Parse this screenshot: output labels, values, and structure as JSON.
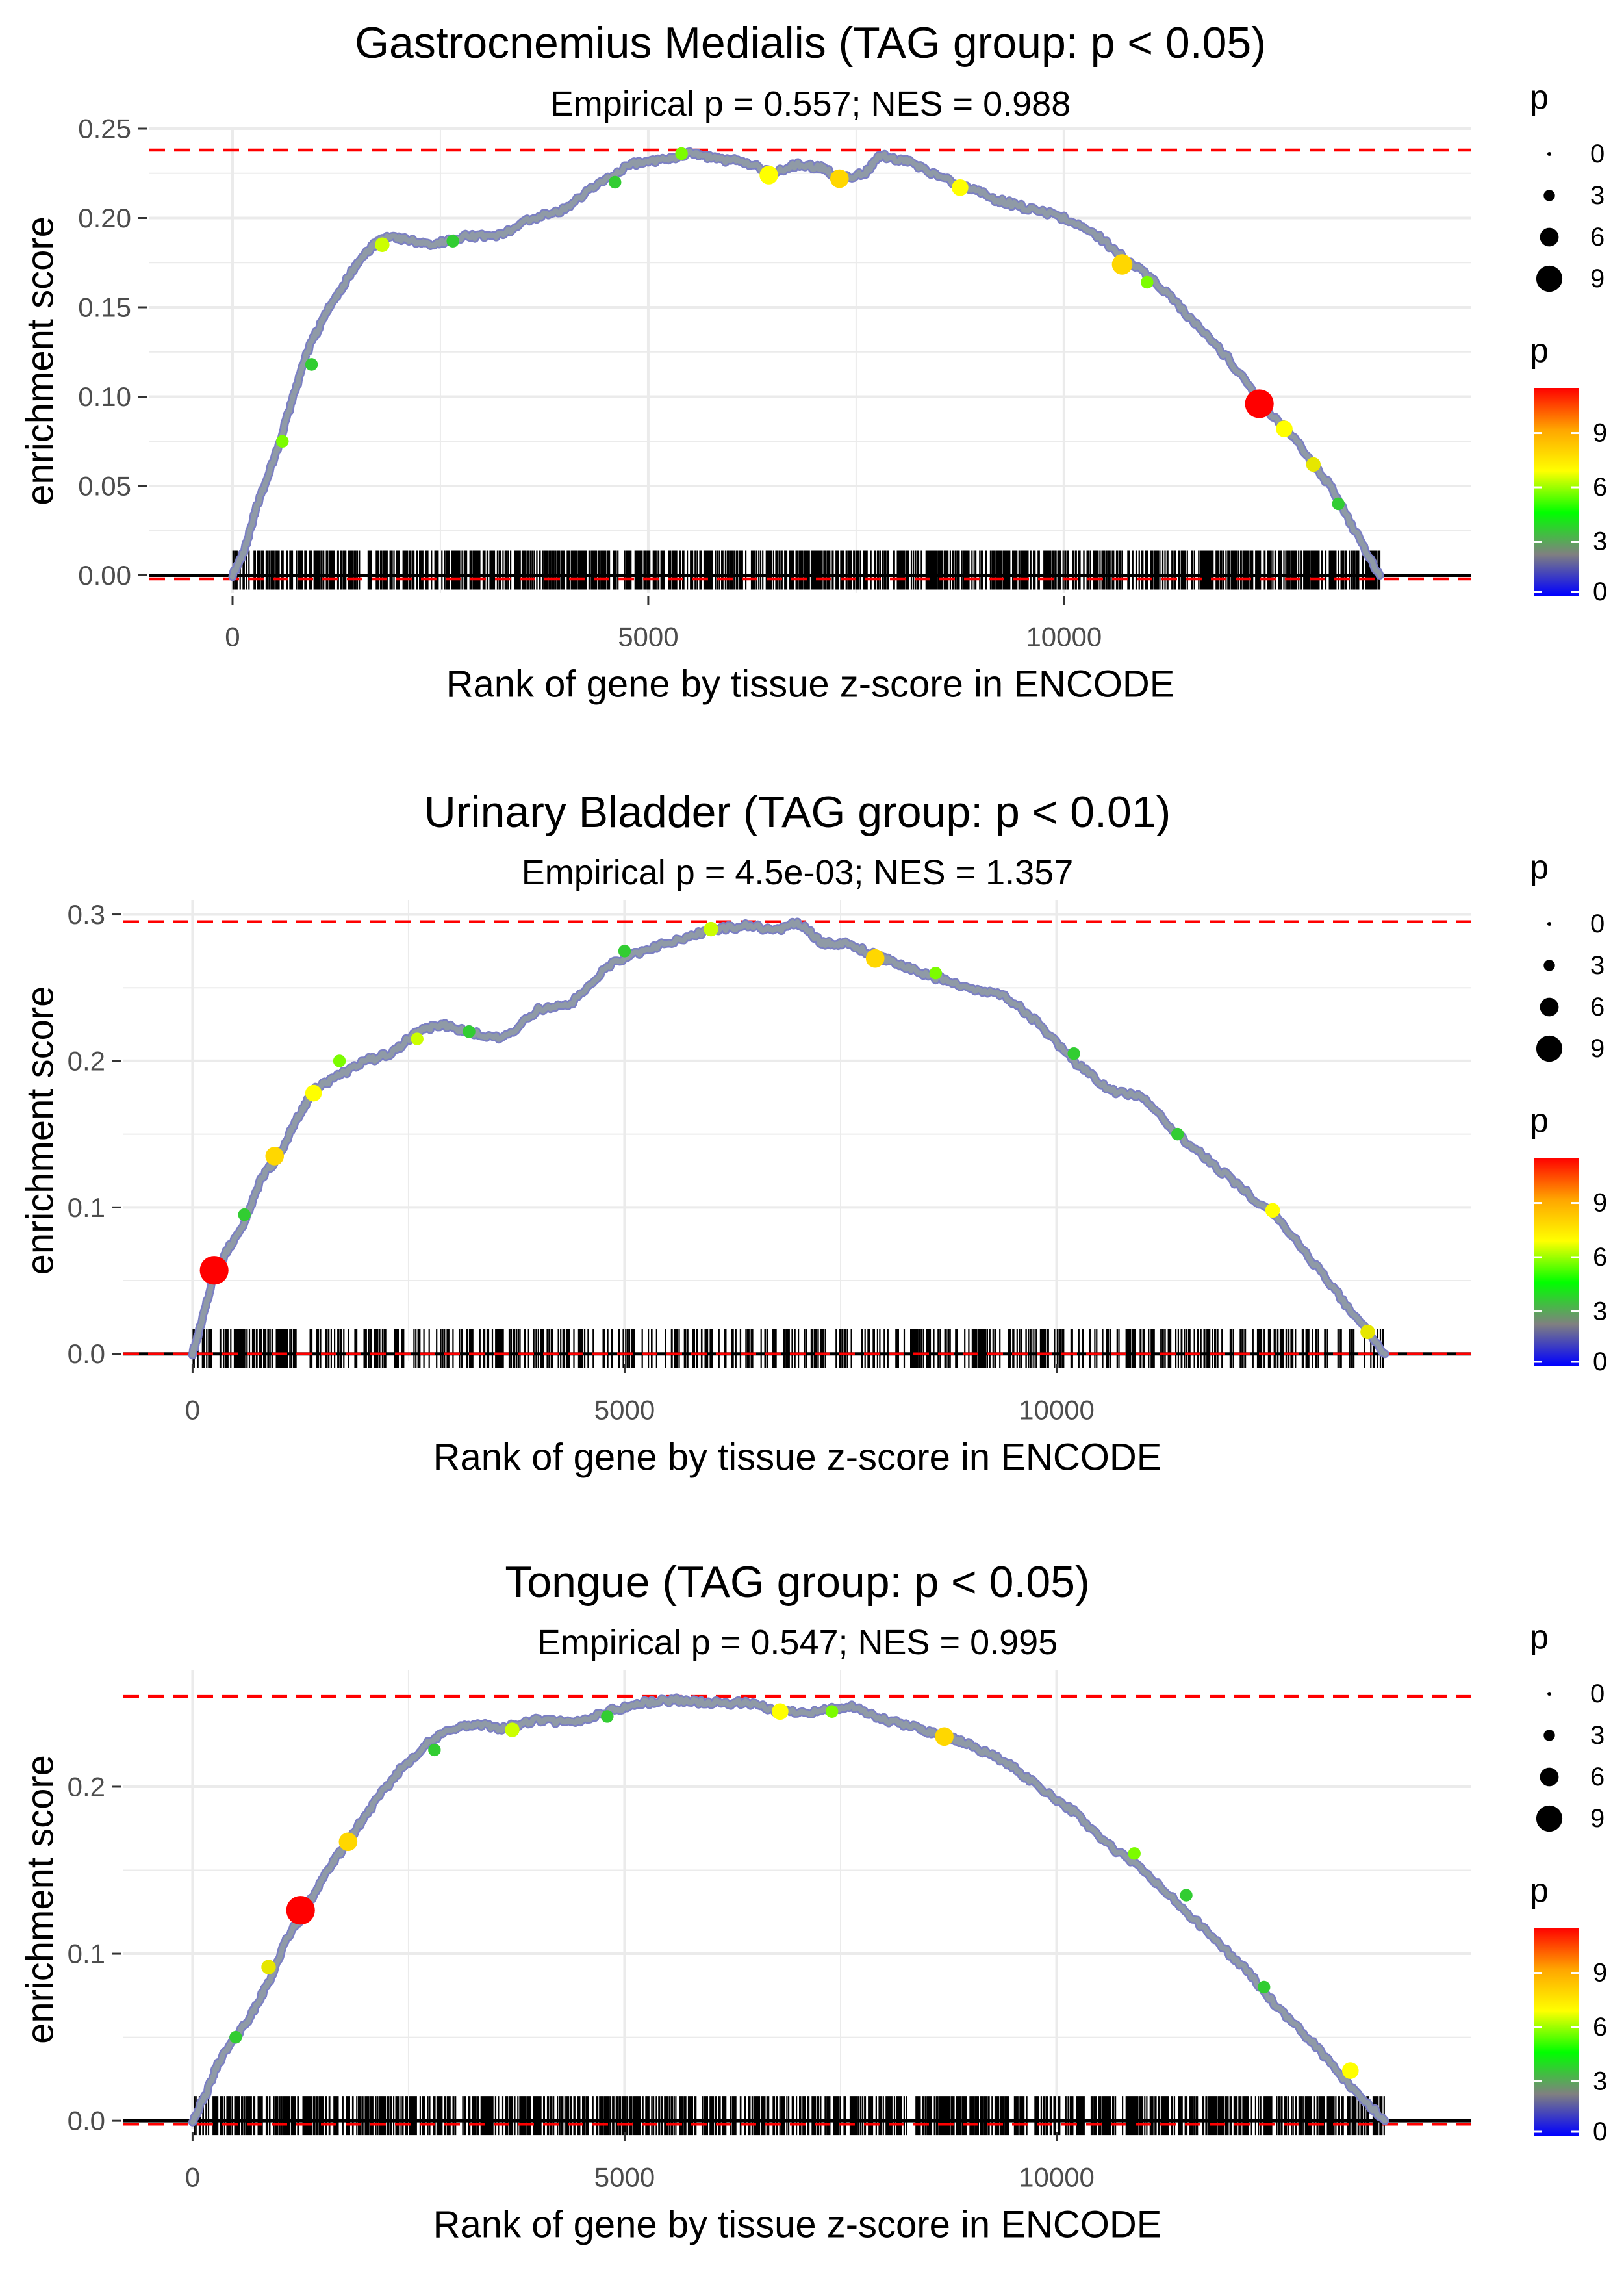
{
  "figure": {
    "background": "#ffffff",
    "grid_color": "#ebebeb",
    "max_line_color": "#ff0000"
  },
  "chart_data": [
    {
      "type": "line",
      "title": "Gastrocnemius Medialis (TAG group: p < 0.05)",
      "subtitle": "Empirical p = 0.557; NES = 0.988",
      "xlabel": "Rank of gene by tissue z-score in ENCODE",
      "ylabel": "enrichment score",
      "xlim": [
        -1000,
        14900
      ],
      "ylim": [
        -0.01,
        0.25
      ],
      "x_ticks": [
        0,
        5000,
        10000
      ],
      "x_tick_labels": [
        "0",
        "5000",
        "10000"
      ],
      "y_ticks": [
        0.0,
        0.05,
        0.1,
        0.15,
        0.2,
        0.25
      ],
      "y_tick_labels": [
        "0.00",
        "0.05",
        "0.10",
        "0.15",
        "0.20",
        "0.25"
      ],
      "max_es": 0.238,
      "min_es": -0.002,
      "n_genes": 13800,
      "curve": {
        "x": [
          0,
          150,
          300,
          500,
          700,
          900,
          1100,
          1300,
          1500,
          1700,
          1900,
          2100,
          2400,
          2800,
          3200,
          3600,
          4000,
          4400,
          4800,
          5200,
          5500,
          5800,
          6100,
          6500,
          6800,
          7100,
          7300,
          7600,
          7800,
          8100,
          8400,
          8800,
          9200,
          9600,
          10000,
          10400,
          10800,
          11200,
          11600,
          12000,
          12400,
          12800,
          13200,
          13500,
          13800
        ],
        "y": [
          0.0,
          0.015,
          0.04,
          0.065,
          0.095,
          0.125,
          0.145,
          0.16,
          0.175,
          0.185,
          0.19,
          0.188,
          0.185,
          0.19,
          0.19,
          0.2,
          0.205,
          0.22,
          0.23,
          0.233,
          0.236,
          0.233,
          0.232,
          0.225,
          0.23,
          0.228,
          0.222,
          0.225,
          0.235,
          0.232,
          0.225,
          0.218,
          0.21,
          0.205,
          0.2,
          0.19,
          0.175,
          0.16,
          0.14,
          0.12,
          0.095,
          0.075,
          0.05,
          0.025,
          0.0
        ]
      },
      "highlights": [
        {
          "x": 12350,
          "y": 0.096,
          "p": 11,
          "color": "#ff0000"
        },
        {
          "x": 10700,
          "y": 0.174,
          "p": 7,
          "color": "#ffd700"
        },
        {
          "x": 7300,
          "y": 0.222,
          "p": 6,
          "color": "#ffd700"
        },
        {
          "x": 6450,
          "y": 0.224,
          "p": 6,
          "color": "#ffff00"
        },
        {
          "x": 8750,
          "y": 0.217,
          "p": 5,
          "color": "#ffff00"
        },
        {
          "x": 12650,
          "y": 0.082,
          "p": 5,
          "color": "#ffff00"
        },
        {
          "x": 13000,
          "y": 0.062,
          "p": 4,
          "color": "#e6e600"
        },
        {
          "x": 1800,
          "y": 0.185,
          "p": 4,
          "color": "#ccff00"
        },
        {
          "x": 5400,
          "y": 0.236,
          "p": 3,
          "color": "#7cfc00"
        },
        {
          "x": 4600,
          "y": 0.22,
          "p": 3,
          "color": "#32cd32"
        },
        {
          "x": 2650,
          "y": 0.187,
          "p": 3,
          "color": "#32cd32"
        },
        {
          "x": 11000,
          "y": 0.164,
          "p": 3,
          "color": "#7cfc00"
        },
        {
          "x": 950,
          "y": 0.118,
          "p": 3,
          "color": "#32cd32"
        },
        {
          "x": 600,
          "y": 0.075,
          "p": 3,
          "color": "#7cfc00"
        },
        {
          "x": 13300,
          "y": 0.04,
          "p": 3,
          "color": "#32cd32"
        }
      ],
      "rug_seed": 11,
      "rug_count": 1050
    },
    {
      "type": "line",
      "title": "Urinary Bladder (TAG group: p < 0.01)",
      "subtitle": "Empirical p = 4.5e-03; NES = 1.357",
      "xlabel": "Rank of gene by tissue z-score in ENCODE",
      "ylabel": "enrichment score",
      "xlim": [
        -800,
        14800
      ],
      "ylim": [
        -0.005,
        0.31
      ],
      "x_ticks": [
        0,
        5000,
        10000
      ],
      "x_tick_labels": [
        "0",
        "5000",
        "10000"
      ],
      "y_ticks": [
        0.0,
        0.1,
        0.2,
        0.3
      ],
      "y_tick_labels": [
        "0.0",
        "0.1",
        "0.2",
        "0.3"
      ],
      "max_es": 0.295,
      "min_es": 0.0,
      "n_genes": 13800,
      "curve": {
        "x": [
          0,
          100,
          250,
          400,
          600,
          800,
          1000,
          1200,
          1400,
          1700,
          2000,
          2300,
          2600,
          2900,
          3200,
          3600,
          4000,
          4400,
          4800,
          5200,
          5600,
          6000,
          6400,
          6800,
          7000,
          7300,
          7600,
          7900,
          8200,
          8600,
          9000,
          9400,
          9800,
          10200,
          10600,
          11000,
          11400,
          11800,
          12200,
          12600,
          13000,
          13400,
          13800
        ],
        "y": [
          0.0,
          0.02,
          0.055,
          0.07,
          0.09,
          0.12,
          0.135,
          0.16,
          0.18,
          0.19,
          0.2,
          0.205,
          0.22,
          0.225,
          0.22,
          0.215,
          0.235,
          0.24,
          0.265,
          0.275,
          0.282,
          0.29,
          0.292,
          0.29,
          0.295,
          0.28,
          0.28,
          0.272,
          0.265,
          0.257,
          0.25,
          0.245,
          0.225,
          0.2,
          0.18,
          0.175,
          0.15,
          0.13,
          0.11,
          0.09,
          0.06,
          0.03,
          0.0
        ]
      },
      "highlights": [
        {
          "x": 250,
          "y": 0.057,
          "p": 11,
          "color": "#ff0000"
        },
        {
          "x": 7900,
          "y": 0.27,
          "p": 6,
          "color": "#ffd700"
        },
        {
          "x": 950,
          "y": 0.135,
          "p": 6,
          "color": "#ffd700"
        },
        {
          "x": 1400,
          "y": 0.178,
          "p": 5,
          "color": "#ffff00"
        },
        {
          "x": 12500,
          "y": 0.098,
          "p": 4,
          "color": "#ffff00"
        },
        {
          "x": 13600,
          "y": 0.015,
          "p": 4,
          "color": "#e6e600"
        },
        {
          "x": 6000,
          "y": 0.29,
          "p": 4,
          "color": "#ccff00"
        },
        {
          "x": 2600,
          "y": 0.215,
          "p": 3,
          "color": "#ccff00"
        },
        {
          "x": 5000,
          "y": 0.275,
          "p": 3,
          "color": "#32cd32"
        },
        {
          "x": 3200,
          "y": 0.22,
          "p": 3,
          "color": "#32cd32"
        },
        {
          "x": 8600,
          "y": 0.26,
          "p": 3,
          "color": "#7cfc00"
        },
        {
          "x": 10200,
          "y": 0.205,
          "p": 3,
          "color": "#32cd32"
        },
        {
          "x": 1700,
          "y": 0.2,
          "p": 3,
          "color": "#7cfc00"
        },
        {
          "x": 11400,
          "y": 0.15,
          "p": 3,
          "color": "#32cd32"
        },
        {
          "x": 600,
          "y": 0.095,
          "p": 3,
          "color": "#32cd32"
        }
      ],
      "rug_seed": 23,
      "rug_count": 560
    },
    {
      "type": "line",
      "title": "Tongue (TAG group: p < 0.05)",
      "subtitle": "Empirical p = 0.547; NES = 0.995",
      "xlabel": "Rank of gene by tissue z-score in ENCODE",
      "ylabel": "enrichment score",
      "xlim": [
        -800,
        14800
      ],
      "ylim": [
        -0.005,
        0.27
      ],
      "x_ticks": [
        0,
        5000,
        10000
      ],
      "x_tick_labels": [
        "0",
        "5000",
        "10000"
      ],
      "y_ticks": [
        0.0,
        0.1,
        0.2
      ],
      "y_tick_labels": [
        "0.0",
        "0.1",
        "0.2"
      ],
      "max_es": 0.254,
      "min_es": -0.002,
      "n_genes": 13800,
      "curve": {
        "x": [
          0,
          150,
          300,
          500,
          700,
          900,
          1100,
          1300,
          1500,
          1700,
          1900,
          2100,
          2400,
          2700,
          3000,
          3300,
          3600,
          4000,
          4400,
          4800,
          5200,
          5600,
          6000,
          6400,
          6800,
          7200,
          7600,
          8000,
          8400,
          8700,
          9000,
          9400,
          9800,
          10200,
          10600,
          11000,
          11400,
          11800,
          12200,
          12600,
          13000,
          13400,
          13800
        ],
        "y": [
          0.0,
          0.015,
          0.035,
          0.05,
          0.065,
          0.085,
          0.11,
          0.125,
          0.145,
          0.16,
          0.175,
          0.19,
          0.21,
          0.225,
          0.235,
          0.237,
          0.235,
          0.24,
          0.238,
          0.245,
          0.25,
          0.252,
          0.25,
          0.25,
          0.245,
          0.245,
          0.248,
          0.24,
          0.235,
          0.23,
          0.225,
          0.215,
          0.2,
          0.185,
          0.165,
          0.15,
          0.13,
          0.11,
          0.09,
          0.065,
          0.045,
          0.02,
          0.0
        ]
      },
      "highlights": [
        {
          "x": 1250,
          "y": 0.126,
          "p": 11,
          "color": "#ff0000"
        },
        {
          "x": 8700,
          "y": 0.23,
          "p": 6,
          "color": "#ffd700"
        },
        {
          "x": 1800,
          "y": 0.167,
          "p": 6,
          "color": "#ffd700"
        },
        {
          "x": 6800,
          "y": 0.245,
          "p": 5,
          "color": "#ffff00"
        },
        {
          "x": 13400,
          "y": 0.03,
          "p": 5,
          "color": "#ffff00"
        },
        {
          "x": 880,
          "y": 0.092,
          "p": 4,
          "color": "#e6e600"
        },
        {
          "x": 3700,
          "y": 0.234,
          "p": 4,
          "color": "#ccff00"
        },
        {
          "x": 2800,
          "y": 0.222,
          "p": 3,
          "color": "#32cd32"
        },
        {
          "x": 4800,
          "y": 0.242,
          "p": 3,
          "color": "#32cd32"
        },
        {
          "x": 10900,
          "y": 0.16,
          "p": 3,
          "color": "#7cfc00"
        },
        {
          "x": 11500,
          "y": 0.135,
          "p": 3,
          "color": "#32cd32"
        },
        {
          "x": 7400,
          "y": 0.245,
          "p": 3,
          "color": "#7cfc00"
        },
        {
          "x": 500,
          "y": 0.05,
          "p": 3,
          "color": "#32cd32"
        },
        {
          "x": 12400,
          "y": 0.08,
          "p": 3,
          "color": "#32cd32"
        }
      ],
      "rug_seed": 37,
      "rug_count": 1050
    }
  ],
  "legends": [
    {
      "size_title": "p",
      "size_labels": [
        "0",
        "3",
        "6",
        "9"
      ],
      "size_values": [
        0,
        3,
        6,
        9
      ],
      "color_title": "p",
      "color_labels": [
        "9",
        "6",
        "3",
        "0"
      ],
      "color_values": [
        9,
        6,
        3,
        0
      ],
      "color_max": 11.5,
      "gradient": [
        "#ff0000",
        "#ffa500",
        "#ffff00",
        "#00ff00",
        "#808080",
        "#0000ff"
      ]
    },
    {
      "size_title": "p",
      "size_labels": [
        "0",
        "3",
        "6",
        "9"
      ],
      "size_values": [
        0,
        3,
        6,
        9
      ],
      "color_title": "p",
      "color_labels": [
        "9",
        "6",
        "3",
        "0"
      ],
      "color_values": [
        9,
        6,
        3,
        0
      ],
      "color_max": 11.5,
      "gradient": [
        "#ff0000",
        "#ffa500",
        "#ffff00",
        "#00ff00",
        "#808080",
        "#0000ff"
      ]
    },
    {
      "size_title": "p",
      "size_labels": [
        "0",
        "3",
        "6",
        "9"
      ],
      "size_values": [
        0,
        3,
        6,
        9
      ],
      "color_title": "p",
      "color_labels": [
        "9",
        "6",
        "3",
        "0"
      ],
      "color_values": [
        9,
        6,
        3,
        0
      ],
      "color_max": 11.5,
      "gradient": [
        "#ff0000",
        "#ffa500",
        "#ffff00",
        "#00ff00",
        "#808080",
        "#0000ff"
      ]
    }
  ]
}
